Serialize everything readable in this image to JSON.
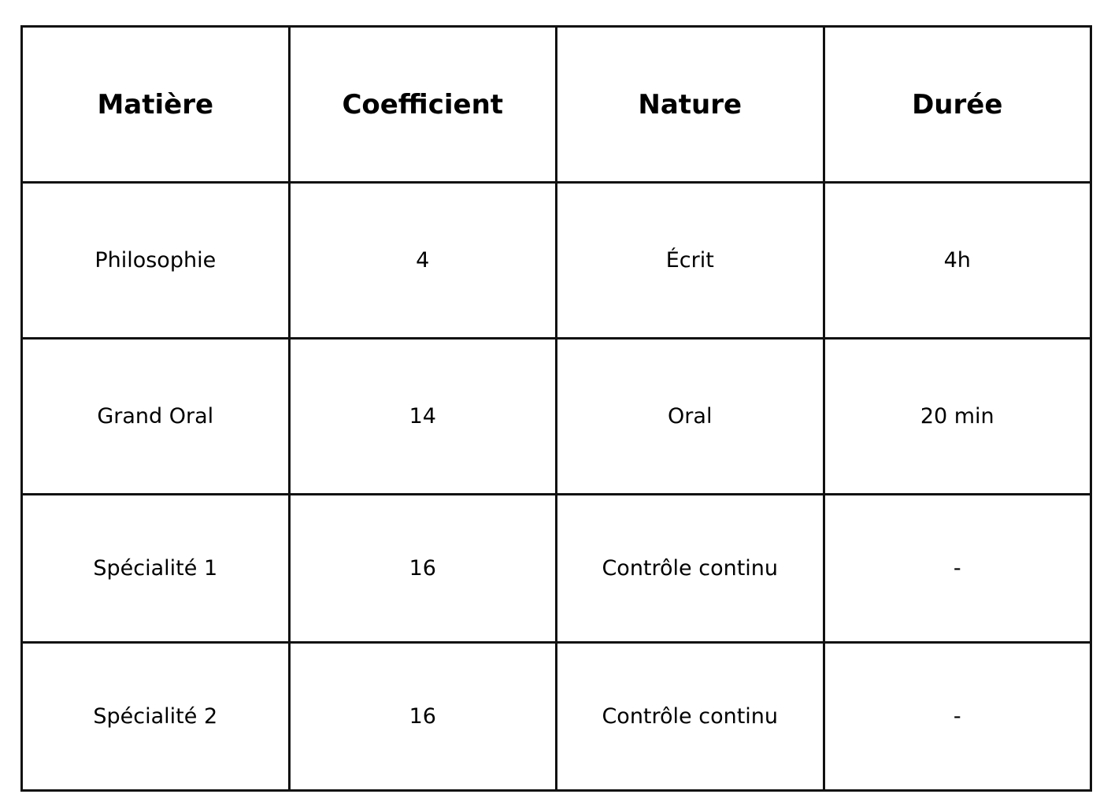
{
  "table": {
    "headers": [
      "Matière",
      "Coefficient",
      "Nature",
      "Durée"
    ],
    "rows": [
      [
        "Philosophie",
        "4",
        "Écrit",
        "4h"
      ],
      [
        "Grand Oral",
        "14",
        "Oral",
        "20 min"
      ],
      [
        "Spécialité 1",
        "16",
        "Contrôle continu",
        "-"
      ],
      [
        "Spécialité 2",
        "16",
        "Contrôle continu",
        "-"
      ]
    ]
  }
}
